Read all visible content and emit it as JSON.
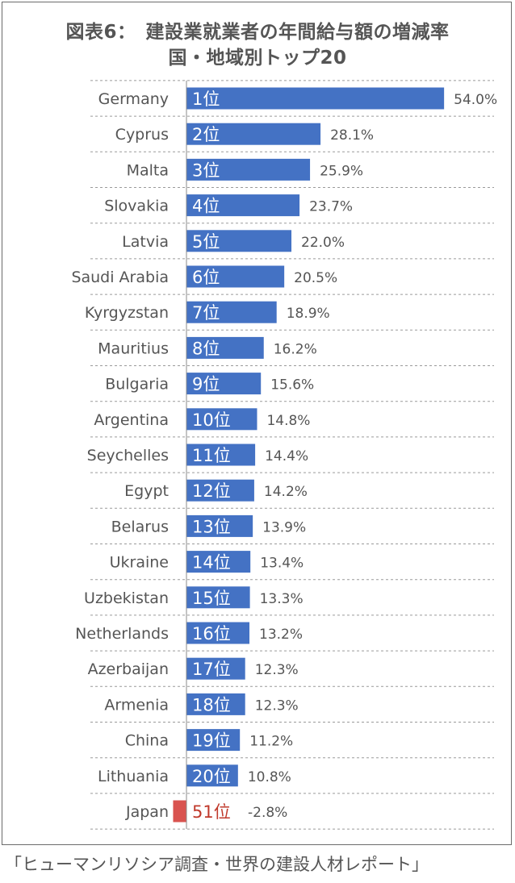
{
  "title_line1": "図表6：　建設業就業者の年間給与額の増減率",
  "title_line2": "国・地域別トップ20",
  "source": "「ヒューマンリソシア調査・世界の建設人材レポート」",
  "colors": {
    "bar": "#4472c4",
    "japan_bar": "#d9534f",
    "japan_text": "#c0392b",
    "label_text": "#555555",
    "grid": "#9a9a9a"
  },
  "chart_data": {
    "type": "bar",
    "orientation": "horizontal",
    "categories": [
      "Germany",
      "Cyprus",
      "Malta",
      "Slovakia",
      "Latvia",
      "Saudi Arabia",
      "Kyrgyzstan",
      "Mauritius",
      "Bulgaria",
      "Argentina",
      "Seychelles",
      "Egypt",
      "Belarus",
      "Ukraine",
      "Uzbekistan",
      "Netherlands",
      "Azerbaijan",
      "Armenia",
      "China",
      "Lithuania",
      "Japan"
    ],
    "ranks": [
      "1位",
      "2位",
      "3位",
      "4位",
      "5位",
      "6位",
      "7位",
      "8位",
      "9位",
      "10位",
      "11位",
      "12位",
      "13位",
      "14位",
      "15位",
      "16位",
      "17位",
      "18位",
      "19位",
      "20位",
      "51位"
    ],
    "values": [
      54.0,
      28.1,
      25.9,
      23.7,
      22.0,
      20.5,
      18.9,
      16.2,
      15.6,
      14.8,
      14.4,
      14.2,
      13.9,
      13.4,
      13.3,
      13.2,
      12.3,
      12.3,
      11.2,
      10.8,
      -2.8
    ],
    "value_labels": [
      "54.0%",
      "28.1%",
      "25.9%",
      "23.7%",
      "22.0%",
      "20.5%",
      "18.9%",
      "16.2%",
      "15.6%",
      "14.8%",
      "14.4%",
      "14.2%",
      "13.9%",
      "13.4%",
      "13.3%",
      "13.2%",
      "12.3%",
      "12.3%",
      "11.2%",
      "10.8%",
      "-2.8%"
    ],
    "highlight": "Japan",
    "grid": true
  }
}
